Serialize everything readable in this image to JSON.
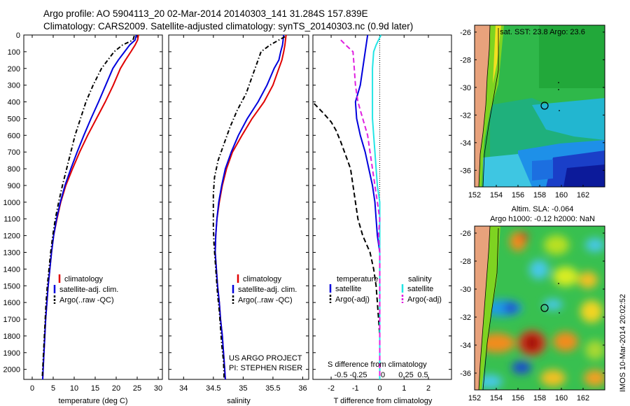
{
  "header": {
    "title_line1": "Argo profile: AO 5904113_20 02-Mar-2014 20140303_141 31.284S 157.839E",
    "title_line2": "Climatology: CARS2009. Satellite-adjusted climatology: synTS_20140303.nc (0.9d later)"
  },
  "depth_axis": {
    "ticks": [
      0,
      100,
      200,
      300,
      400,
      500,
      600,
      700,
      800,
      900,
      1000,
      1100,
      1200,
      1300,
      1400,
      1500,
      1600,
      1700,
      1800,
      1900,
      2000
    ],
    "range": [
      0,
      2060
    ]
  },
  "colors": {
    "climatology": "#e00000",
    "satellite": "#0000dd",
    "argo": "#000000",
    "salinity_sat": "#22e5e5",
    "salinity_argo": "#e020e0"
  },
  "chart_data": [
    {
      "id": "temperature",
      "type": "line",
      "xlabel": "temperature (deg C)",
      "xlim": [
        -2,
        31
      ],
      "xticks": [
        0,
        5,
        10,
        15,
        20,
        25,
        30
      ],
      "legend": [
        "climatology",
        "satellite-adj. clim.",
        "Argo(..raw -QC)"
      ],
      "series": [
        {
          "name": "climatology",
          "color": "#e00000",
          "style": "solid",
          "points": [
            [
              25.3,
              0
            ],
            [
              25.1,
              30
            ],
            [
              24.5,
              60
            ],
            [
              23.5,
              100
            ],
            [
              22.2,
              150
            ],
            [
              21,
              200
            ],
            [
              19.3,
              300
            ],
            [
              17.4,
              400
            ],
            [
              15.3,
              500
            ],
            [
              13.2,
              600
            ],
            [
              11.3,
              700
            ],
            [
              9.6,
              800
            ],
            [
              8.0,
              900
            ],
            [
              6.8,
              1000
            ],
            [
              5.9,
              1100
            ],
            [
              5.1,
              1200
            ],
            [
              4.6,
              1300
            ],
            [
              4.2,
              1400
            ],
            [
              3.8,
              1500
            ],
            [
              3.5,
              1600
            ],
            [
              3.2,
              1700
            ],
            [
              3.0,
              1800
            ],
            [
              2.8,
              1900
            ],
            [
              2.6,
              2000
            ],
            [
              2.5,
              2060
            ]
          ]
        },
        {
          "name": "satellite-adj. clim.",
          "color": "#0000dd",
          "style": "solid",
          "points": [
            [
              24.8,
              0
            ],
            [
              24.5,
              30
            ],
            [
              23.2,
              60
            ],
            [
              22,
              100
            ],
            [
              20.5,
              150
            ],
            [
              19.2,
              200
            ],
            [
              17.5,
              300
            ],
            [
              15.8,
              400
            ],
            [
              14,
              500
            ],
            [
              12.3,
              600
            ],
            [
              10.7,
              700
            ],
            [
              9.2,
              800
            ],
            [
              7.8,
              900
            ],
            [
              6.7,
              1000
            ],
            [
              5.8,
              1100
            ],
            [
              5.1,
              1200
            ],
            [
              4.6,
              1300
            ],
            [
              4.2,
              1400
            ],
            [
              3.8,
              1500
            ],
            [
              3.5,
              1600
            ],
            [
              3.2,
              1700
            ],
            [
              3.0,
              1800
            ],
            [
              2.8,
              1900
            ],
            [
              2.6,
              2000
            ],
            [
              2.5,
              2060
            ]
          ]
        },
        {
          "name": "Argo(..raw -QC)",
          "color": "#000000",
          "style": "dashdot",
          "points": [
            [
              24.3,
              5
            ],
            [
              24,
              30
            ],
            [
              21.5,
              60
            ],
            [
              19.5,
              100
            ],
            [
              18,
              150
            ],
            [
              16.5,
              200
            ],
            [
              14.5,
              300
            ],
            [
              12.8,
              400
            ],
            [
              11.5,
              500
            ],
            [
              10.2,
              600
            ],
            [
              9.2,
              700
            ],
            [
              8.2,
              800
            ],
            [
              7.2,
              900
            ],
            [
              6.3,
              1000
            ],
            [
              5.5,
              1100
            ],
            [
              4.9,
              1200
            ],
            [
              4.4,
              1300
            ],
            [
              4.0,
              1400
            ],
            [
              3.6,
              1500
            ],
            [
              3.3,
              1600
            ],
            [
              3.1,
              1700
            ],
            [
              2.9,
              1800
            ],
            [
              2.7,
              1900
            ],
            [
              2.5,
              2000
            ],
            [
              2.4,
              2050
            ]
          ]
        }
      ]
    },
    {
      "id": "salinity",
      "type": "line",
      "xlabel": "salinity",
      "xlim": [
        33.75,
        36.1
      ],
      "xticks": [
        34,
        34.5,
        35,
        35.5,
        36
      ],
      "legend": [
        "climatology",
        "satellite-adj. clim.",
        "Argo(..raw -QC)"
      ],
      "annotation_line1": "US ARGO PROJECT",
      "annotation_line2": "PI: STEPHEN RISER",
      "series": [
        {
          "name": "climatology",
          "color": "#e00000",
          "style": "solid",
          "points": [
            [
              35.72,
              0
            ],
            [
              35.7,
              60
            ],
            [
              35.68,
              100
            ],
            [
              35.65,
              150
            ],
            [
              35.6,
              200
            ],
            [
              35.5,
              300
            ],
            [
              35.35,
              400
            ],
            [
              35.15,
              500
            ],
            [
              34.98,
              600
            ],
            [
              34.82,
              700
            ],
            [
              34.72,
              800
            ],
            [
              34.65,
              900
            ],
            [
              34.6,
              1000
            ],
            [
              34.56,
              1100
            ],
            [
              34.54,
              1200
            ],
            [
              34.53,
              1300
            ],
            [
              34.55,
              1400
            ],
            [
              34.57,
              1500
            ],
            [
              34.6,
              1600
            ],
            [
              34.62,
              1700
            ],
            [
              34.65,
              1800
            ],
            [
              34.67,
              1900
            ],
            [
              34.69,
              2000
            ],
            [
              34.7,
              2060
            ]
          ]
        },
        {
          "name": "satellite-adj. clim.",
          "color": "#0000dd",
          "style": "solid",
          "points": [
            [
              35.68,
              0
            ],
            [
              35.66,
              60
            ],
            [
              35.63,
              100
            ],
            [
              35.6,
              150
            ],
            [
              35.52,
              200
            ],
            [
              35.4,
              300
            ],
            [
              35.25,
              400
            ],
            [
              35.07,
              500
            ],
            [
              34.92,
              600
            ],
            [
              34.8,
              700
            ],
            [
              34.7,
              800
            ],
            [
              34.64,
              900
            ],
            [
              34.59,
              1000
            ],
            [
              34.56,
              1100
            ],
            [
              34.54,
              1200
            ],
            [
              34.53,
              1300
            ],
            [
              34.55,
              1400
            ],
            [
              34.57,
              1500
            ],
            [
              34.6,
              1600
            ],
            [
              34.62,
              1700
            ],
            [
              34.65,
              1800
            ],
            [
              34.67,
              1900
            ],
            [
              34.69,
              2000
            ],
            [
              34.7,
              2060
            ]
          ]
        },
        {
          "name": "Argo(..raw -QC)",
          "color": "#000000",
          "style": "dashdot",
          "points": [
            [
              35.7,
              10
            ],
            [
              35.45,
              60
            ],
            [
              35.3,
              100
            ],
            [
              35.25,
              150
            ],
            [
              35.15,
              250
            ],
            [
              35.05,
              350
            ],
            [
              34.9,
              450
            ],
            [
              34.78,
              550
            ],
            [
              34.68,
              650
            ],
            [
              34.58,
              750
            ],
            [
              34.52,
              850
            ],
            [
              34.5,
              950
            ],
            [
              34.5,
              1050
            ],
            [
              34.5,
              1150
            ],
            [
              34.51,
              1250
            ],
            [
              34.53,
              1350
            ],
            [
              34.55,
              1450
            ],
            [
              34.57,
              1550
            ],
            [
              34.6,
              1650
            ],
            [
              34.62,
              1750
            ],
            [
              34.64,
              1850
            ],
            [
              34.67,
              1950
            ],
            [
              34.68,
              2050
            ]
          ]
        }
      ]
    },
    {
      "id": "difference",
      "type": "line",
      "xlabel": "T difference from climatology",
      "xlabel_top": "S difference from climatology",
      "xlim": [
        -2.75,
        2.95
      ],
      "xticks": [
        -2,
        -1,
        0,
        1,
        2
      ],
      "s_ticks": [
        "-0.5",
        "-0.25",
        "0",
        "0.25",
        "0.5"
      ],
      "legend_temperature": "temperature",
      "legend_salinity": "salinity",
      "legend": [
        "satellite",
        "Argo(-adj)",
        "satellite",
        "Argo(-adj)"
      ],
      "zero_line": "dotted",
      "series": [
        {
          "name": "T satellite",
          "color": "#0000dd",
          "style": "solid",
          "points": [
            [
              -0.5,
              0
            ],
            [
              -0.6,
              100
            ],
            [
              -0.7,
              200
            ],
            [
              -0.8,
              300
            ],
            [
              -1.0,
              400
            ],
            [
              -0.95,
              500
            ],
            [
              -0.8,
              600
            ],
            [
              -0.6,
              700
            ],
            [
              -0.45,
              800
            ],
            [
              -0.3,
              900
            ],
            [
              -0.2,
              1000
            ],
            [
              -0.15,
              1100
            ],
            [
              -0.1,
              1200
            ],
            [
              0,
              1300
            ],
            [
              0,
              2060
            ]
          ]
        },
        {
          "name": "T Argo(-adj)",
          "color": "#000000",
          "style": "dashed",
          "points": [
            [
              -2.7,
              410
            ],
            [
              -2.3,
              470
            ],
            [
              -2.0,
              520
            ],
            [
              -1.8,
              570
            ],
            [
              -1.6,
              640
            ],
            [
              -1.4,
              720
            ],
            [
              -1.2,
              800
            ],
            [
              -1.1,
              900
            ],
            [
              -1.0,
              1000
            ],
            [
              -0.9,
              1100
            ],
            [
              -0.7,
              1200
            ],
            [
              -0.4,
              1300
            ],
            [
              -0.25,
              1400
            ],
            [
              -0.15,
              1500
            ],
            [
              -0.1,
              1600
            ],
            [
              -0.05,
              1700
            ],
            [
              0,
              1800
            ],
            [
              0,
              2050
            ]
          ]
        },
        {
          "name": "S satellite",
          "color": "#22e5e5",
          "style": "solid",
          "points": [
            [
              0.05,
              0
            ],
            [
              -0.15,
              60
            ],
            [
              -0.25,
              100
            ],
            [
              -0.3,
              200
            ],
            [
              -0.3,
              300
            ],
            [
              -0.3,
              400
            ],
            [
              -0.3,
              500
            ],
            [
              -0.25,
              600
            ],
            [
              -0.2,
              700
            ],
            [
              -0.15,
              800
            ],
            [
              -0.1,
              900
            ],
            [
              0,
              1000
            ],
            [
              0,
              2060
            ]
          ]
        },
        {
          "name": "S Argo(-adj)",
          "color": "#e020e0",
          "style": "dashed",
          "points": [
            [
              -1.6,
              30
            ],
            [
              -1.4,
              60
            ],
            [
              -1.1,
              100
            ],
            [
              -1.05,
              200
            ],
            [
              -1.0,
              300
            ],
            [
              -0.9,
              400
            ],
            [
              -0.7,
              500
            ],
            [
              -0.5,
              600
            ],
            [
              -0.4,
              700
            ],
            [
              -0.3,
              800
            ],
            [
              -0.2,
              900
            ],
            [
              -0.1,
              1000
            ],
            [
              0,
              1100
            ],
            [
              -0.05,
              1200
            ],
            [
              0,
              1300
            ],
            [
              0,
              2050
            ]
          ]
        }
      ]
    }
  ],
  "maps": {
    "sst_title": "sat. SST: 23.8 Argo: 23.6",
    "sla_title_line1": "Altim. SLA: -0.064",
    "sla_title_line2": "Argo h1000: -0.12 h2000: NaN",
    "lon_ticks": [
      "152",
      "154",
      "156",
      "158",
      "160",
      "162"
    ],
    "lat_ticks": [
      "-26",
      "-28",
      "-30",
      "-32",
      "-34",
      "-36"
    ],
    "lon_range": [
      152,
      164
    ],
    "lat_range": [
      -25.5,
      -37.2
    ],
    "profile_location": {
      "lon": 157.839,
      "lat": -31.284
    }
  },
  "credit": "IMOS 10-Mar-2014 20:02:52"
}
